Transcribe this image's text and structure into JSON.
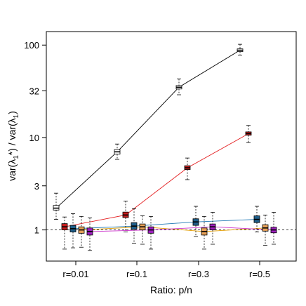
{
  "chart_data": {
    "type": "box",
    "xlabel": "Ratio: p/n",
    "ylabel_parts": [
      "var(",
      "λ",
      "1",
      "*) / var(",
      "λ",
      "1",
      ")"
    ],
    "ylim": [
      0.46,
      140
    ],
    "yscale": "log",
    "yticks": [
      1,
      3,
      10,
      32,
      100
    ],
    "ytick_labels": [
      "1",
      "3",
      "10",
      "32",
      "100"
    ],
    "categories": [
      "r=0.01",
      "r=0.1",
      "r=0.3",
      "r=0.5"
    ],
    "reference_line": 1,
    "series": [
      {
        "color": "#000000",
        "fill": "#ffffff",
        "medians": [
          1.72,
          7.0,
          35.0,
          88.0
        ],
        "boxes": [
          [
            1.64,
            1.84
          ],
          [
            6.6,
            7.4
          ],
          [
            33.5,
            36.5
          ],
          [
            85.0,
            91.0
          ]
        ],
        "whiskers": [
          [
            1.3,
            2.5
          ],
          [
            5.8,
            8.5
          ],
          [
            29.0,
            43.0
          ],
          [
            78.0,
            102.0
          ]
        ]
      },
      {
        "color": "#e31a1c",
        "fill": "#c81d1d",
        "medians": [
          1.08,
          1.45,
          4.7,
          11.0
        ],
        "boxes": [
          [
            1.0,
            1.17
          ],
          [
            1.36,
            1.56
          ],
          [
            4.5,
            4.95
          ],
          [
            10.6,
            11.5
          ]
        ],
        "whiskers": [
          [
            0.62,
            1.38
          ],
          [
            0.95,
            2.05
          ],
          [
            3.5,
            6.0
          ],
          [
            8.8,
            13.5
          ]
        ]
      },
      {
        "color": "#1f78b4",
        "fill": "#1f5f8b",
        "medians": [
          1.03,
          1.1,
          1.22,
          1.3
        ],
        "boxes": [
          [
            0.95,
            1.12
          ],
          [
            1.02,
            1.2
          ],
          [
            1.12,
            1.32
          ],
          [
            1.2,
            1.42
          ]
        ],
        "whiskers": [
          [
            0.64,
            1.5
          ],
          [
            0.72,
            1.7
          ],
          [
            0.85,
            1.8
          ],
          [
            0.95,
            1.8
          ]
        ]
      },
      {
        "color": "#e69f00",
        "fill": "#e8a25a",
        "medians": [
          1.0,
          1.08,
          0.96,
          1.05
        ],
        "boxes": [
          [
            0.92,
            1.08
          ],
          [
            1.0,
            1.16
          ],
          [
            0.88,
            1.05
          ],
          [
            0.97,
            1.14
          ]
        ],
        "whiskers": [
          [
            0.65,
            1.4
          ],
          [
            0.7,
            1.42
          ],
          [
            0.62,
            1.4
          ],
          [
            0.68,
            1.45
          ]
        ]
      },
      {
        "color": "#cc33cc",
        "fill": "#a020c0",
        "medians": [
          0.96,
          1.0,
          1.08,
          1.0
        ],
        "boxes": [
          [
            0.88,
            1.05
          ],
          [
            0.92,
            1.08
          ],
          [
            1.0,
            1.16
          ],
          [
            0.93,
            1.07
          ]
        ],
        "whiskers": [
          [
            0.6,
            1.35
          ],
          [
            0.62,
            1.4
          ],
          [
            0.7,
            1.55
          ],
          [
            0.7,
            1.55
          ]
        ]
      }
    ]
  }
}
